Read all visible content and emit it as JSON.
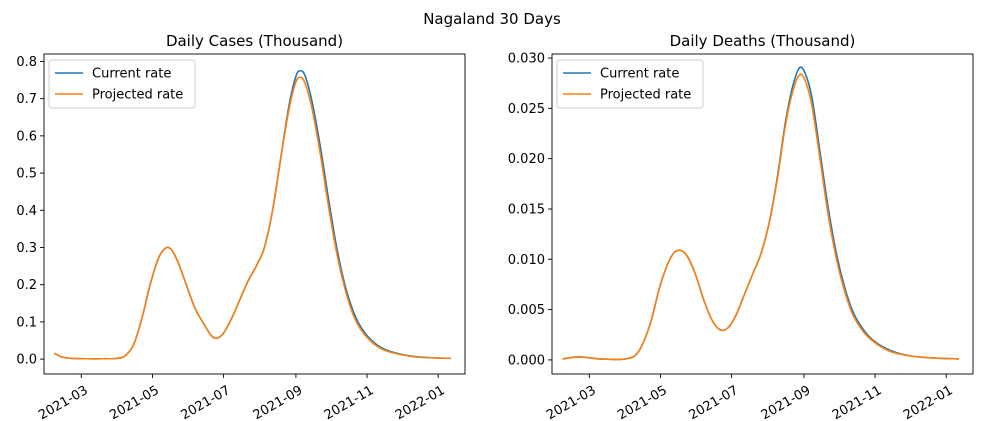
{
  "figure": {
    "suptitle": "Nagaland 30 Days"
  },
  "colors": {
    "current": "#1f77b4",
    "projected": "#ff7f0e"
  },
  "chart_data": [
    {
      "type": "line",
      "title": "Daily Cases (Thousand)",
      "xlabel": "",
      "ylabel": "",
      "x_type": "date",
      "xlim": [
        "2021-01-28",
        "2022-01-24"
      ],
      "ylim": [
        -0.04,
        0.82
      ],
      "xticks": [
        "2021-03-01",
        "2021-05-01",
        "2021-07-01",
        "2021-09-01",
        "2021-11-01",
        "2022-01-01"
      ],
      "xtick_labels": [
        "2021-03",
        "2021-05",
        "2021-07",
        "2021-09",
        "2021-11",
        "2022-01"
      ],
      "yticks": [
        0.0,
        0.1,
        0.2,
        0.3,
        0.4,
        0.5,
        0.6,
        0.7,
        0.8
      ],
      "ytick_labels": [
        "0.0",
        "0.1",
        "0.2",
        "0.3",
        "0.4",
        "0.5",
        "0.6",
        "0.7",
        "0.8"
      ],
      "grid": false,
      "legend": "top-left",
      "series": [
        {
          "name": "Current rate",
          "color": "#1f77b4",
          "points": [
            [
              "2021-02-06",
              0.016
            ],
            [
              "2021-02-12",
              0.006
            ],
            [
              "2021-02-20",
              0.002
            ],
            [
              "2021-03-05",
              0.001
            ],
            [
              "2021-03-20",
              0.001
            ],
            [
              "2021-04-01",
              0.002
            ],
            [
              "2021-04-08",
              0.01
            ],
            [
              "2021-04-15",
              0.04
            ],
            [
              "2021-04-22",
              0.11
            ],
            [
              "2021-04-29",
              0.2
            ],
            [
              "2021-05-06",
              0.27
            ],
            [
              "2021-05-12",
              0.298
            ],
            [
              "2021-05-17",
              0.295
            ],
            [
              "2021-05-23",
              0.26
            ],
            [
              "2021-05-30",
              0.2
            ],
            [
              "2021-06-06",
              0.14
            ],
            [
              "2021-06-13",
              0.1
            ],
            [
              "2021-06-20",
              0.065
            ],
            [
              "2021-06-25",
              0.056
            ],
            [
              "2021-07-01",
              0.07
            ],
            [
              "2021-07-08",
              0.11
            ],
            [
              "2021-07-15",
              0.16
            ],
            [
              "2021-07-22",
              0.21
            ],
            [
              "2021-07-29",
              0.25
            ],
            [
              "2021-08-05",
              0.3
            ],
            [
              "2021-08-12",
              0.4
            ],
            [
              "2021-08-19",
              0.54
            ],
            [
              "2021-08-26",
              0.68
            ],
            [
              "2021-09-01",
              0.76
            ],
            [
              "2021-09-05",
              0.775
            ],
            [
              "2021-09-09",
              0.76
            ],
            [
              "2021-09-15",
              0.69
            ],
            [
              "2021-09-22",
              0.57
            ],
            [
              "2021-09-29",
              0.43
            ],
            [
              "2021-10-06",
              0.3
            ],
            [
              "2021-10-13",
              0.2
            ],
            [
              "2021-10-20",
              0.13
            ],
            [
              "2021-10-27",
              0.085
            ],
            [
              "2021-11-05",
              0.05
            ],
            [
              "2021-11-15",
              0.028
            ],
            [
              "2021-11-30",
              0.013
            ],
            [
              "2021-12-15",
              0.006
            ],
            [
              "2022-01-01",
              0.003
            ],
            [
              "2022-01-12",
              0.002
            ]
          ]
        },
        {
          "name": "Projected rate",
          "color": "#ff7f0e",
          "points": [
            [
              "2021-02-06",
              0.016
            ],
            [
              "2021-02-12",
              0.006
            ],
            [
              "2021-02-20",
              0.002
            ],
            [
              "2021-03-05",
              0.001
            ],
            [
              "2021-03-20",
              0.001
            ],
            [
              "2021-04-01",
              0.002
            ],
            [
              "2021-04-08",
              0.01
            ],
            [
              "2021-04-15",
              0.04
            ],
            [
              "2021-04-22",
              0.11
            ],
            [
              "2021-04-29",
              0.2
            ],
            [
              "2021-05-06",
              0.27
            ],
            [
              "2021-05-12",
              0.298
            ],
            [
              "2021-05-17",
              0.295
            ],
            [
              "2021-05-23",
              0.26
            ],
            [
              "2021-05-30",
              0.2
            ],
            [
              "2021-06-06",
              0.14
            ],
            [
              "2021-06-13",
              0.1
            ],
            [
              "2021-06-20",
              0.065
            ],
            [
              "2021-06-25",
              0.056
            ],
            [
              "2021-07-01",
              0.07
            ],
            [
              "2021-07-08",
              0.11
            ],
            [
              "2021-07-15",
              0.16
            ],
            [
              "2021-07-22",
              0.21
            ],
            [
              "2021-07-29",
              0.25
            ],
            [
              "2021-08-05",
              0.3
            ],
            [
              "2021-08-12",
              0.4
            ],
            [
              "2021-08-19",
              0.54
            ],
            [
              "2021-08-26",
              0.67
            ],
            [
              "2021-09-01",
              0.745
            ],
            [
              "2021-09-05",
              0.757
            ],
            [
              "2021-09-09",
              0.74
            ],
            [
              "2021-09-15",
              0.67
            ],
            [
              "2021-09-22",
              0.55
            ],
            [
              "2021-09-29",
              0.41
            ],
            [
              "2021-10-06",
              0.285
            ],
            [
              "2021-10-13",
              0.19
            ],
            [
              "2021-10-20",
              0.12
            ],
            [
              "2021-10-27",
              0.078
            ],
            [
              "2021-11-05",
              0.046
            ],
            [
              "2021-11-15",
              0.025
            ],
            [
              "2021-11-30",
              0.012
            ],
            [
              "2021-12-15",
              0.005
            ],
            [
              "2022-01-01",
              0.003
            ],
            [
              "2022-01-12",
              0.002
            ]
          ]
        }
      ]
    },
    {
      "type": "line",
      "title": "Daily Deaths (Thousand)",
      "xlabel": "",
      "ylabel": "",
      "x_type": "date",
      "xlim": [
        "2021-01-28",
        "2022-01-24"
      ],
      "ylim": [
        -0.0014,
        0.0304
      ],
      "xticks": [
        "2021-03-01",
        "2021-05-01",
        "2021-07-01",
        "2021-09-01",
        "2021-11-01",
        "2022-01-01"
      ],
      "xtick_labels": [
        "2021-03",
        "2021-05",
        "2021-07",
        "2021-09",
        "2021-11",
        "2022-01"
      ],
      "yticks": [
        0.0,
        0.005,
        0.01,
        0.015,
        0.02,
        0.025,
        0.03
      ],
      "ytick_labels": [
        "0.000",
        "0.005",
        "0.010",
        "0.015",
        "0.020",
        "0.025",
        "0.030"
      ],
      "grid": false,
      "legend": "top-left",
      "series": [
        {
          "name": "Current rate",
          "color": "#1f77b4",
          "points": [
            [
              "2021-02-06",
              0.0001
            ],
            [
              "2021-02-20",
              0.0003
            ],
            [
              "2021-03-10",
              0.0001
            ],
            [
              "2021-04-01",
              0.0001
            ],
            [
              "2021-04-12",
              0.0008
            ],
            [
              "2021-04-22",
              0.0035
            ],
            [
              "2021-05-01",
              0.0075
            ],
            [
              "2021-05-10",
              0.0102
            ],
            [
              "2021-05-17",
              0.0109
            ],
            [
              "2021-05-24",
              0.0103
            ],
            [
              "2021-05-31",
              0.0085
            ],
            [
              "2021-06-07",
              0.006
            ],
            [
              "2021-06-14",
              0.004
            ],
            [
              "2021-06-21",
              0.003
            ],
            [
              "2021-06-28",
              0.0032
            ],
            [
              "2021-07-05",
              0.0045
            ],
            [
              "2021-07-12",
              0.0065
            ],
            [
              "2021-07-19",
              0.0085
            ],
            [
              "2021-07-26",
              0.0105
            ],
            [
              "2021-08-02",
              0.0135
            ],
            [
              "2021-08-09",
              0.018
            ],
            [
              "2021-08-16",
              0.0235
            ],
            [
              "2021-08-22",
              0.027
            ],
            [
              "2021-08-28",
              0.029
            ],
            [
              "2021-09-02",
              0.0285
            ],
            [
              "2021-09-08",
              0.026
            ],
            [
              "2021-09-15",
              0.0205
            ],
            [
              "2021-09-22",
              0.015
            ],
            [
              "2021-09-29",
              0.0105
            ],
            [
              "2021-10-06",
              0.0072
            ],
            [
              "2021-10-13",
              0.0048
            ],
            [
              "2021-10-22",
              0.003
            ],
            [
              "2021-11-01",
              0.0018
            ],
            [
              "2021-11-15",
              0.0009
            ],
            [
              "2021-12-01",
              0.0004
            ],
            [
              "2021-12-20",
              0.0002
            ],
            [
              "2022-01-12",
              0.0001
            ]
          ]
        },
        {
          "name": "Projected rate",
          "color": "#ff7f0e",
          "points": [
            [
              "2021-02-06",
              0.0001
            ],
            [
              "2021-02-20",
              0.0003
            ],
            [
              "2021-03-10",
              0.0001
            ],
            [
              "2021-04-01",
              0.0001
            ],
            [
              "2021-04-12",
              0.0008
            ],
            [
              "2021-04-22",
              0.0035
            ],
            [
              "2021-05-01",
              0.0075
            ],
            [
              "2021-05-10",
              0.0102
            ],
            [
              "2021-05-17",
              0.0109
            ],
            [
              "2021-05-24",
              0.0103
            ],
            [
              "2021-05-31",
              0.0085
            ],
            [
              "2021-06-07",
              0.006
            ],
            [
              "2021-06-14",
              0.004
            ],
            [
              "2021-06-21",
              0.003
            ],
            [
              "2021-06-28",
              0.0032
            ],
            [
              "2021-07-05",
              0.0045
            ],
            [
              "2021-07-12",
              0.0065
            ],
            [
              "2021-07-19",
              0.0085
            ],
            [
              "2021-07-26",
              0.0105
            ],
            [
              "2021-08-02",
              0.0135
            ],
            [
              "2021-08-09",
              0.0178
            ],
            [
              "2021-08-16",
              0.0232
            ],
            [
              "2021-08-22",
              0.0265
            ],
            [
              "2021-08-28",
              0.0283
            ],
            [
              "2021-09-02",
              0.0278
            ],
            [
              "2021-09-08",
              0.0252
            ],
            [
              "2021-09-15",
              0.0198
            ],
            [
              "2021-09-22",
              0.0143
            ],
            [
              "2021-09-29",
              0.01
            ],
            [
              "2021-10-06",
              0.0068
            ],
            [
              "2021-10-13",
              0.0045
            ],
            [
              "2021-10-22",
              0.0028
            ],
            [
              "2021-11-01",
              0.0017
            ],
            [
              "2021-11-15",
              0.0008
            ],
            [
              "2021-12-01",
              0.0004
            ],
            [
              "2021-12-20",
              0.0002
            ],
            [
              "2022-01-12",
              0.0001
            ]
          ]
        }
      ]
    }
  ]
}
